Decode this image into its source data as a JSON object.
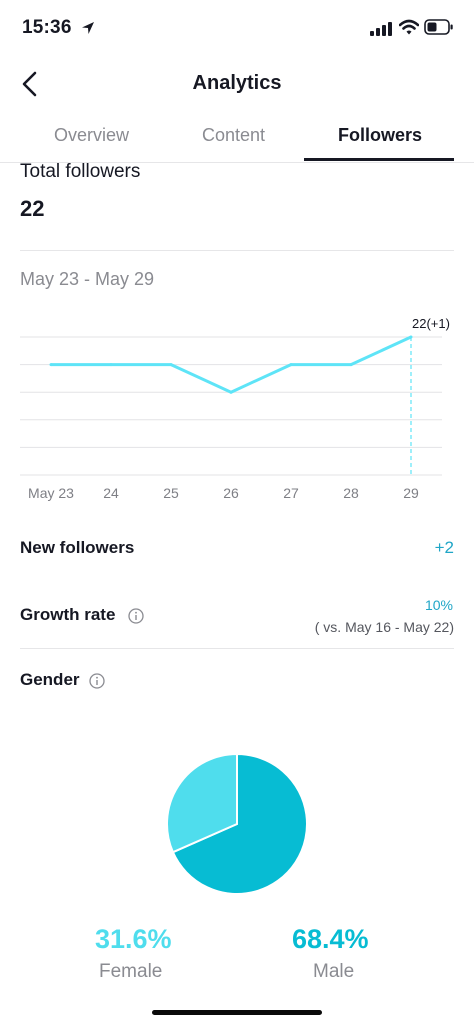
{
  "status_bar": {
    "time": "15:36"
  },
  "header": {
    "title": "Analytics"
  },
  "tabs": [
    {
      "label": "Overview",
      "active": false
    },
    {
      "label": "Content",
      "active": false
    },
    {
      "label": "Followers",
      "active": true
    }
  ],
  "summary": {
    "total_label": "Total followers",
    "total_value": "22",
    "date_range": "May 23 - May 29"
  },
  "chart_data": [
    {
      "type": "line",
      "x": [
        "May 23",
        "24",
        "25",
        "26",
        "27",
        "28",
        "29"
      ],
      "series": [
        {
          "values": [
            21,
            21,
            21,
            20,
            21,
            21,
            22
          ]
        }
      ],
      "ylim": [
        17,
        22
      ],
      "grid": true,
      "annotations": [
        {
          "x": "29",
          "text": "22(+1)"
        }
      ],
      "color": "#5ee4f7"
    },
    {
      "type": "pie",
      "title": "Gender",
      "categories": [
        "Female",
        "Male"
      ],
      "values": [
        31.6,
        68.4
      ],
      "labels": [
        "31.6%",
        "68.4%"
      ],
      "colors": [
        "#4fdded",
        "#07bcd3"
      ]
    }
  ],
  "stats": {
    "new_followers_label": "New followers",
    "new_followers_value": "+2",
    "growth_rate_label": "Growth rate",
    "growth_rate_value": "10%",
    "growth_rate_compare": "( vs. May 16 - May 22)",
    "gender_label": "Gender"
  },
  "gender": {
    "female_pct": "31.6%",
    "female_label": "Female",
    "male_pct": "68.4%",
    "male_label": "Male",
    "female_color": "#4fdded",
    "male_color": "#07bcd3"
  },
  "icons": {
    "back": "chevron-left-icon",
    "info": "info-circle-icon",
    "location": "location-arrow-icon",
    "signal": "cellular-signal-icon",
    "wifi": "wifi-icon",
    "battery": "battery-icon"
  }
}
